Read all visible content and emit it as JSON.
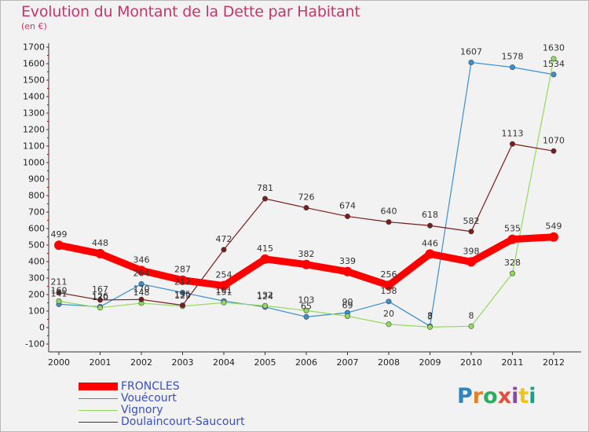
{
  "title": "Evolution du Montant de la Dette par Habitant",
  "subtitle": "(en €)",
  "chart_data": {
    "type": "line",
    "categories": [
      "2000",
      "2001",
      "2002",
      "2003",
      "2004",
      "2005",
      "2006",
      "2007",
      "2008",
      "2009",
      "2010",
      "2011",
      "2012"
    ],
    "ylim": [
      -100,
      1700
    ],
    "yticks": [
      -100,
      0,
      100,
      200,
      300,
      400,
      500,
      600,
      700,
      800,
      900,
      1000,
      1100,
      1200,
      1300,
      1400,
      1500,
      1600,
      1700
    ],
    "grid": false,
    "legend_placement": "bottom-left",
    "series": [
      {
        "name": "FRONCLES",
        "color": "#ff0000",
        "values": [
          499,
          448,
          346,
          287,
          254,
          415,
          382,
          339,
          256,
          446,
          398,
          535,
          549
        ]
      },
      {
        "name": "Vouécourt",
        "color": "#3a8fd0",
        "values": [
          141,
          126,
          264,
          212,
          161,
          124,
          65,
          90,
          158,
          8,
          1607,
          1578,
          1534
        ]
      },
      {
        "name": "Vignory",
        "color": "#8fdc5a",
        "values": [
          160,
          120,
          148,
          129,
          151,
          132,
          103,
          69,
          20,
          3,
          8,
          328,
          1630
        ]
      },
      {
        "name": "Doulaincourt-Saucourt",
        "color": "#7a1c1c",
        "values": [
          211,
          167,
          170,
          135,
          472,
          781,
          726,
          674,
          640,
          618,
          582,
          1113,
          1070
        ]
      }
    ]
  },
  "value_labels": [
    {
      "s": 0,
      "i": 0,
      "t": "499"
    },
    {
      "s": 0,
      "i": 1,
      "t": "448"
    },
    {
      "s": 0,
      "i": 2,
      "t": "346"
    },
    {
      "s": 0,
      "i": 3,
      "t": "287"
    },
    {
      "s": 0,
      "i": 4,
      "t": "254"
    },
    {
      "s": 0,
      "i": 5,
      "t": "415"
    },
    {
      "s": 0,
      "i": 6,
      "t": "382"
    },
    {
      "s": 0,
      "i": 7,
      "t": "339"
    },
    {
      "s": 0,
      "i": 8,
      "t": "256"
    },
    {
      "s": 0,
      "i": 9,
      "t": "446"
    },
    {
      "s": 0,
      "i": 10,
      "t": "398"
    },
    {
      "s": 0,
      "i": 11,
      "t": "535"
    },
    {
      "s": 0,
      "i": 12,
      "t": "549"
    },
    {
      "s": 1,
      "i": 0,
      "t": "141"
    },
    {
      "s": 1,
      "i": 1,
      "t": "126"
    },
    {
      "s": 1,
      "i": 2,
      "t": "264"
    },
    {
      "s": 1,
      "i": 3,
      "t": "212"
    },
    {
      "s": 1,
      "i": 4,
      "t": "161"
    },
    {
      "s": 1,
      "i": 5,
      "t": "124"
    },
    {
      "s": 1,
      "i": 6,
      "t": "65"
    },
    {
      "s": 1,
      "i": 7,
      "t": "90"
    },
    {
      "s": 1,
      "i": 8,
      "t": "158"
    },
    {
      "s": 1,
      "i": 9,
      "t": "8"
    },
    {
      "s": 1,
      "i": 10,
      "t": "1607"
    },
    {
      "s": 1,
      "i": 11,
      "t": "1578"
    },
    {
      "s": 1,
      "i": 12,
      "t": "1534"
    },
    {
      "s": 2,
      "i": 0,
      "t": "160"
    },
    {
      "s": 2,
      "i": 1,
      "t": "120"
    },
    {
      "s": 2,
      "i": 2,
      "t": "148"
    },
    {
      "s": 2,
      "i": 3,
      "t": "129"
    },
    {
      "s": 2,
      "i": 4,
      "t": "151"
    },
    {
      "s": 2,
      "i": 5,
      "t": "132"
    },
    {
      "s": 2,
      "i": 6,
      "t": "103"
    },
    {
      "s": 2,
      "i": 7,
      "t": "69"
    },
    {
      "s": 2,
      "i": 8,
      "t": "20"
    },
    {
      "s": 2,
      "i": 9,
      "t": "3"
    },
    {
      "s": 2,
      "i": 10,
      "t": "8"
    },
    {
      "s": 2,
      "i": 11,
      "t": "328"
    },
    {
      "s": 2,
      "i": 12,
      "t": "1630"
    },
    {
      "s": 3,
      "i": 0,
      "t": "211"
    },
    {
      "s": 3,
      "i": 1,
      "t": "167"
    },
    {
      "s": 3,
      "i": 2,
      "t": "170"
    },
    {
      "s": 3,
      "i": 3,
      "t": "135"
    },
    {
      "s": 3,
      "i": 4,
      "t": "472"
    },
    {
      "s": 3,
      "i": 5,
      "t": "781"
    },
    {
      "s": 3,
      "i": 6,
      "t": "726"
    },
    {
      "s": 3,
      "i": 7,
      "t": "674"
    },
    {
      "s": 3,
      "i": 8,
      "t": "640"
    },
    {
      "s": 3,
      "i": 9,
      "t": "618"
    },
    {
      "s": 3,
      "i": 10,
      "t": "582"
    },
    {
      "s": 3,
      "i": 11,
      "t": "1113"
    },
    {
      "s": 3,
      "i": 12,
      "t": "1070"
    }
  ],
  "logo": {
    "text": "Proxiti",
    "colors": [
      "#2e86c1",
      "#e67e22",
      "#27ae60",
      "#e74c3c",
      "#8e44ad",
      "#f1c40f",
      "#16a085"
    ]
  }
}
